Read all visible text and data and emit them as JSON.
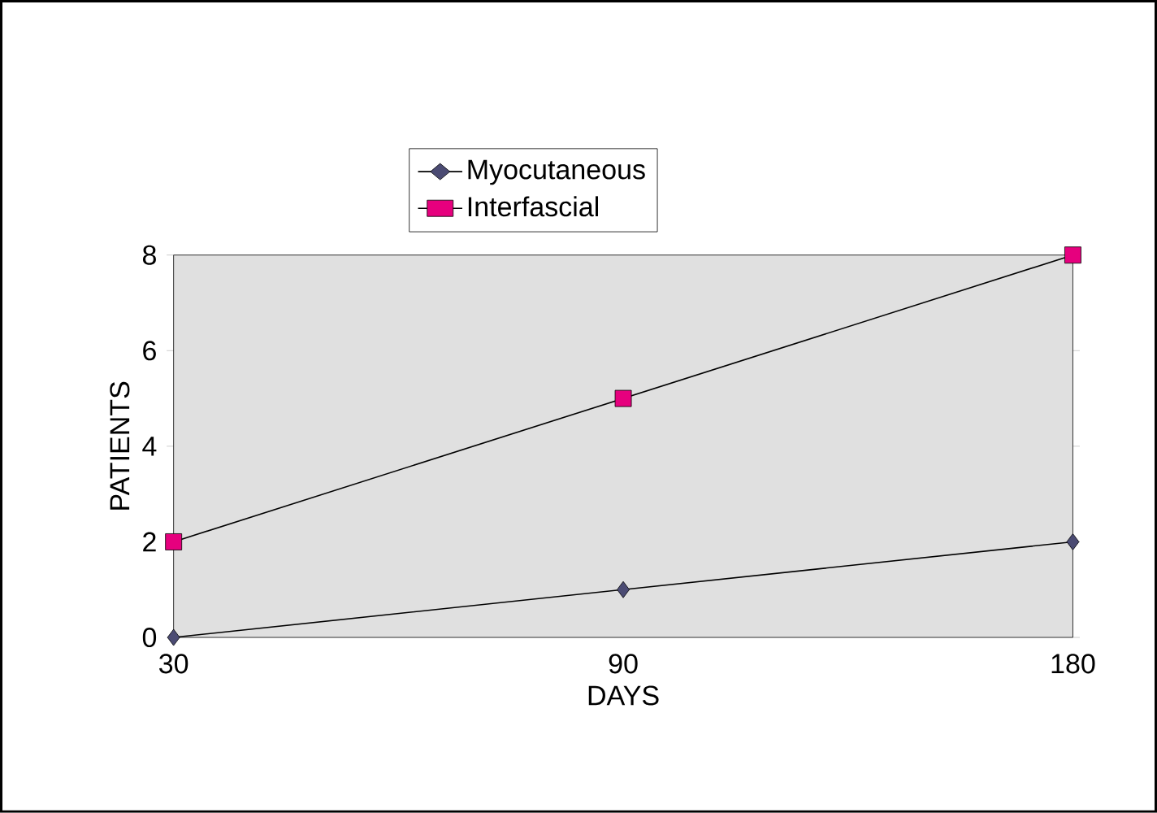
{
  "chart_data": {
    "type": "line",
    "xlabel": "DAYS",
    "ylabel": "PATIENTS",
    "categories": [
      "30",
      "90",
      "180"
    ],
    "series": [
      {
        "name": "Myocutaneous",
        "color": "#4b4b73",
        "marker": "diamond",
        "values": [
          0,
          1,
          2
        ]
      },
      {
        "name": "Interfascial",
        "color": "#e6007e",
        "marker": "square",
        "values": [
          2,
          5,
          8
        ]
      }
    ],
    "ylim": [
      0,
      8
    ],
    "yticks": [
      0,
      2,
      4,
      6,
      8
    ],
    "grid": false,
    "legend": "top",
    "line_style": "solid"
  }
}
